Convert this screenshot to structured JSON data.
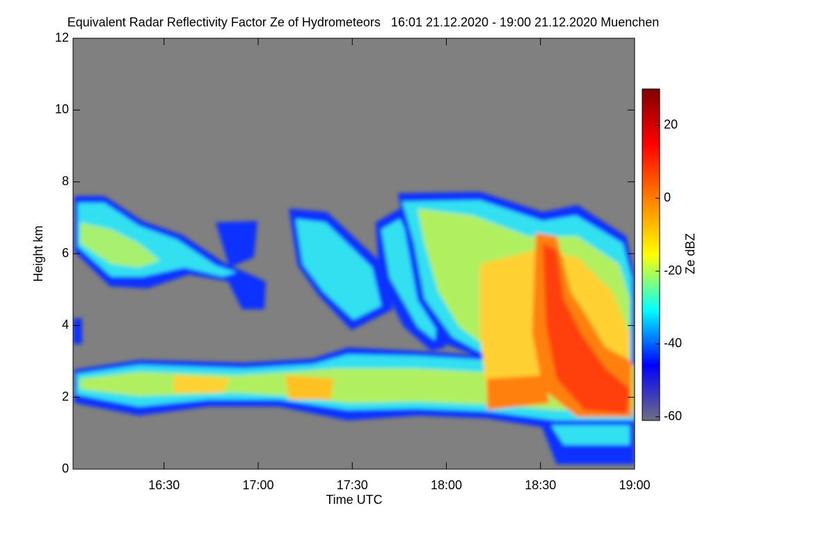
{
  "chart_data": {
    "type": "heatmap",
    "title": "Equivalent Radar Reflectivity Factor Ze of Hydrometeors   16:01 21.12.2020 - 19:00 21.12.2020 Muenchen",
    "x_label": "Time UTC",
    "y_label": "Height km",
    "xlim": [
      961,
      1140
    ],
    "xticks": [
      {
        "value": 990,
        "label": "16:30"
      },
      {
        "value": 1020,
        "label": "17:00"
      },
      {
        "value": 1050,
        "label": "17:30"
      },
      {
        "value": 1080,
        "label": "18:00"
      },
      {
        "value": 1110,
        "label": "18:30"
      },
      {
        "value": 1140,
        "label": "19:00"
      }
    ],
    "ylim": [
      0,
      12
    ],
    "yticks": [
      0,
      2,
      4,
      6,
      8,
      10,
      12
    ],
    "background": "#808080",
    "colorbar": {
      "label": "Ze dBZ",
      "lim": [
        -61,
        30
      ],
      "ticks": [
        -60,
        -40,
        -20,
        0,
        20
      ],
      "colors": [
        "#6e6e82",
        "#0000ff",
        "#00ffff",
        "#ffff00",
        "#ff8000",
        "#ff0000",
        "#800000"
      ]
    }
  }
}
